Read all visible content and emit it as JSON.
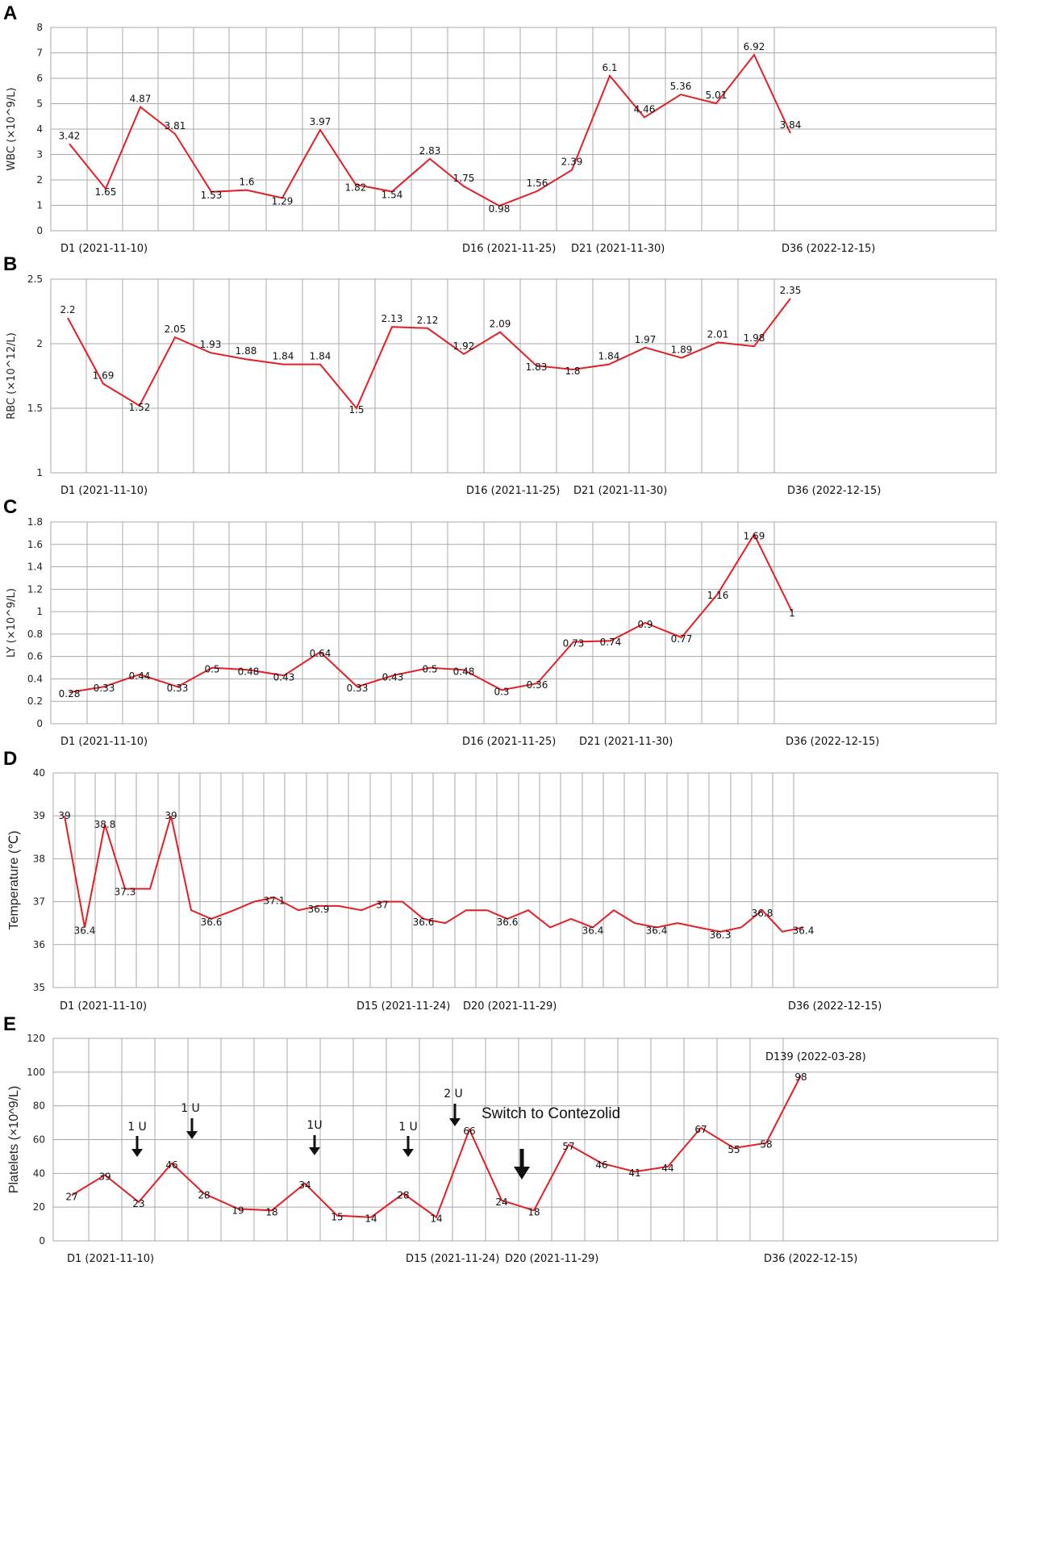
{
  "chart_data": [
    {
      "panel": "A",
      "type": "line",
      "ylabel": "WBC (×10^9/L)",
      "ylim": [
        0,
        8
      ],
      "yticks": [
        0,
        1,
        2,
        3,
        4,
        5,
        6,
        7,
        8
      ],
      "grid": true,
      "values": [
        3.42,
        1.65,
        4.87,
        3.81,
        1.53,
        1.6,
        1.29,
        3.97,
        1.82,
        1.54,
        2.83,
        1.75,
        0.98,
        1.56,
        2.39,
        6.1,
        4.46,
        5.36,
        5.01,
        6.92,
        3.84
      ],
      "labels": [
        "3.42",
        "1.65",
        "4.87",
        "3.81",
        "1.53",
        "1.6",
        "1.29",
        "3.97",
        "1.82",
        "1.54",
        "2.83",
        "1.75",
        "0.98",
        "1.56",
        "2.39",
        "6.1",
        "4.46",
        "5.36",
        "5.01",
        "6.92",
        "3.84"
      ],
      "x_labels": [
        "D1 (2021-11-10)",
        "D16 (2021-11-25)",
        "D21 (2021-11-30)",
        "D36 (2022-12-15)"
      ]
    },
    {
      "panel": "B",
      "type": "line",
      "ylabel": "RBC (×10^12/L)",
      "ylim": [
        1,
        2.5
      ],
      "yticks": [
        1,
        1.5,
        2,
        2.5
      ],
      "grid": true,
      "values": [
        2.2,
        1.69,
        1.52,
        2.05,
        1.93,
        1.88,
        1.84,
        1.84,
        1.5,
        2.13,
        2.12,
        1.92,
        2.09,
        1.83,
        1.8,
        1.84,
        1.97,
        1.89,
        2.01,
        1.98,
        2.35
      ],
      "labels": [
        "2.2",
        "1.69",
        "1.52",
        "2.05",
        "1.93",
        "1.88",
        "1.84",
        "1.84",
        "1.5",
        "2.13",
        "2.12",
        "1.92",
        "2.09",
        "1.83",
        "1.8",
        "1.84",
        "1.97",
        "1.89",
        "2.01",
        "1.98",
        "2.35"
      ],
      "x_labels": [
        "D1 (2021-11-10)",
        "D16 (2021-11-25)",
        "D21 (2021-11-30)",
        "D36 (2022-12-15)"
      ]
    },
    {
      "panel": "C",
      "type": "line",
      "ylabel": "LY (×10^9/L)",
      "ylim": [
        0,
        1.8
      ],
      "yticks": [
        0,
        0.2,
        0.4,
        0.6,
        0.8,
        1,
        1.2,
        1.4,
        1.6,
        1.8
      ],
      "grid": true,
      "values": [
        0.28,
        0.33,
        0.44,
        0.33,
        0.5,
        0.48,
        0.43,
        0.64,
        0.33,
        0.43,
        0.5,
        0.48,
        0.3,
        0.36,
        0.73,
        0.74,
        0.9,
        0.77,
        1.16,
        1.69,
        1
      ],
      "labels": [
        "0.28",
        "0.33",
        "0.44",
        "0.33",
        "0.5",
        "0.48",
        "0.43",
        "0.64",
        "0.33",
        "0.43",
        "0.5",
        "0.48",
        "0.3",
        "0.36",
        "0.73",
        "0.74",
        "0.9",
        "0.77",
        "1.16",
        "1.69",
        "1"
      ],
      "x_labels": [
        "D1 (2021-11-10)",
        "D16 (2021-11-25)",
        "D21 (2021-11-30)",
        "D36 (2022-12-15)"
      ]
    },
    {
      "panel": "D",
      "type": "line",
      "ylabel": "Temperature (℃)",
      "ylim": [
        35,
        40
      ],
      "yticks": [
        35,
        36,
        37,
        38,
        39,
        40
      ],
      "grid": true,
      "values": [
        39,
        36.4,
        38.8,
        37.3,
        37.3,
        39,
        36.8,
        36.6,
        36.8,
        37,
        37.1,
        36.8,
        36.9,
        36.9,
        36.8,
        37,
        37,
        36.6,
        36.5,
        36.8,
        36.8,
        36.6,
        36.8,
        36.4,
        36.6,
        36.4,
        36.8,
        36.5,
        36.4,
        36.5,
        36.4,
        36.3,
        36.4,
        36.8,
        36.3,
        36.4
      ],
      "point_labels": [
        "39",
        "36.4",
        "38.8",
        "37.3",
        "",
        "39",
        "",
        "36.6",
        "",
        "",
        "37.1",
        "",
        "36.9",
        "",
        "",
        "37",
        "",
        "36.6",
        "",
        "",
        "",
        "36.6",
        "",
        "",
        "",
        "36.4",
        "",
        "",
        "36.4",
        "",
        "",
        "36.3",
        "",
        "36.8",
        "",
        "36.4"
      ],
      "x_labels": [
        "D1 (2021-11-10)",
        "D15 (2021-11-24)",
        "D20 (2021-11-29)",
        "D36 (2022-12-15)"
      ]
    },
    {
      "panel": "E",
      "type": "line",
      "ylabel": "Platelets (×10^9/L)",
      "ylim": [
        0,
        120
      ],
      "yticks": [
        0,
        20,
        40,
        60,
        80,
        100,
        120
      ],
      "grid": true,
      "values": [
        27,
        39,
        23,
        46,
        28,
        19,
        18,
        34,
        15,
        14,
        28,
        14,
        66,
        24,
        18,
        57,
        46,
        41,
        44,
        67,
        55,
        58,
        98
      ],
      "labels": [
        "27",
        "39",
        "23",
        "46",
        "28",
        "19",
        "18",
        "34",
        "15",
        "14",
        "28",
        "14",
        "66",
        "24",
        "18",
        "57",
        "46",
        "41",
        "44",
        "67",
        "55",
        "58",
        "98"
      ],
      "x_labels": [
        "D1 (2021-11-10)",
        "D15 (2021-11-24)",
        "D20 (2021-11-29)",
        "D36 (2022-12-15)"
      ],
      "annotations": [
        "1 U",
        "1 U",
        "1U",
        "1 U",
        "2 U",
        "Switch to Contezolid",
        "D139 (2022-03-28)"
      ]
    }
  ]
}
